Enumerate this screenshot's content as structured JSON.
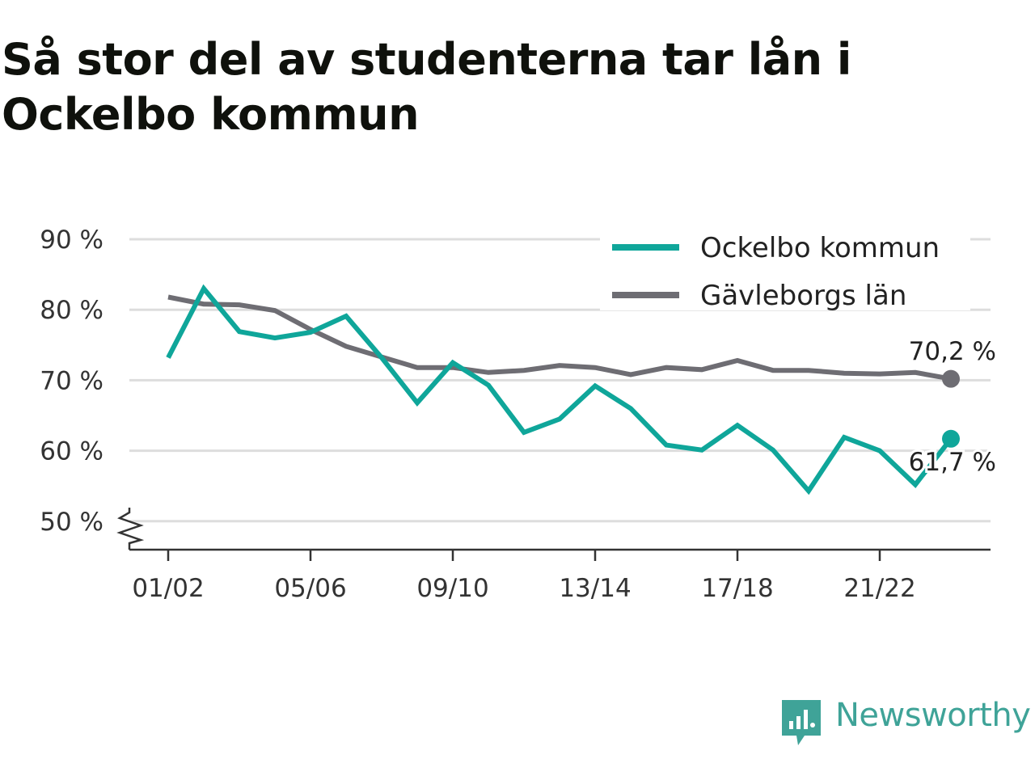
{
  "title": "Så stor del av studenterna tar lån i Ockelbo kommun",
  "brand": {
    "name": "Newsworthy",
    "color": "#3fa398",
    "icon": "newsworthy-logo-icon"
  },
  "colors": {
    "ockelbo": "#0fa69a",
    "lan": "#6e6d73",
    "grid": "#dddddd",
    "axis": "#333333"
  },
  "chart_data": {
    "type": "line",
    "title": "Så stor del av studenterna tar lån i Ockelbo kommun",
    "xlabel": "",
    "ylabel": "",
    "categories": [
      "01/02",
      "02/03",
      "03/04",
      "04/05",
      "05/06",
      "06/07",
      "07/08",
      "08/09",
      "09/10",
      "10/11",
      "11/12",
      "12/13",
      "13/14",
      "14/15",
      "15/16",
      "16/17",
      "17/18",
      "18/19",
      "19/20",
      "20/21",
      "21/22",
      "22/23",
      "23/24"
    ],
    "x_tick_labels": [
      "01/02",
      "05/06",
      "09/10",
      "13/14",
      "17/18",
      "21/22"
    ],
    "y_ticks": [
      50,
      60,
      70,
      80,
      90
    ],
    "y_tick_labels": [
      "50 %",
      "60 %",
      "70 %",
      "80 %",
      "90 %"
    ],
    "ylim": [
      46,
      93
    ],
    "y_axis_break": true,
    "grid": true,
    "legend_position": "top-right",
    "series": [
      {
        "name": "Ockelbo kommun",
        "color": "#0fa69a",
        "values": [
          73.2,
          83.0,
          76.9,
          76.0,
          76.8,
          79.1,
          73.2,
          66.8,
          72.5,
          69.3,
          62.6,
          64.5,
          69.2,
          66.0,
          60.8,
          60.1,
          63.6,
          60.1,
          54.3,
          61.9,
          60.0,
          55.2,
          61.7
        ],
        "end_label": "61,7 %"
      },
      {
        "name": "Gävleborgs län",
        "color": "#6e6d73",
        "values": [
          81.8,
          80.8,
          80.7,
          79.9,
          77.2,
          74.8,
          73.3,
          71.8,
          71.8,
          71.1,
          71.4,
          72.1,
          71.8,
          70.8,
          71.8,
          71.5,
          72.8,
          71.4,
          71.4,
          71.0,
          70.9,
          71.1,
          70.2
        ],
        "end_label": "70,2 %"
      }
    ]
  }
}
